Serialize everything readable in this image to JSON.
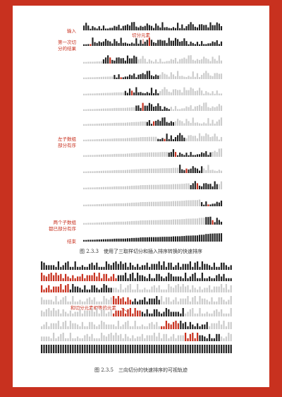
{
  "figure_top": {
    "labels": {
      "input": "输入",
      "pivot": "切分元素",
      "first_partition": [
        "第一次切",
        "分的结果"
      ],
      "left_partial": [
        "左子数组",
        "部分有序"
      ],
      "both_partial": [
        "两个子数组",
        "都已部分有序"
      ],
      "done": "结束"
    },
    "caption": "图 2.3.3　使用了三取样切分和插入排序转换的快速排序"
  },
  "figure_bottom": {
    "labels": {
      "equal_to_pivot": "和切分元素相等的元素"
    },
    "caption": "图 2.3.5　三向切分的快速排序的可视轨迹"
  }
}
